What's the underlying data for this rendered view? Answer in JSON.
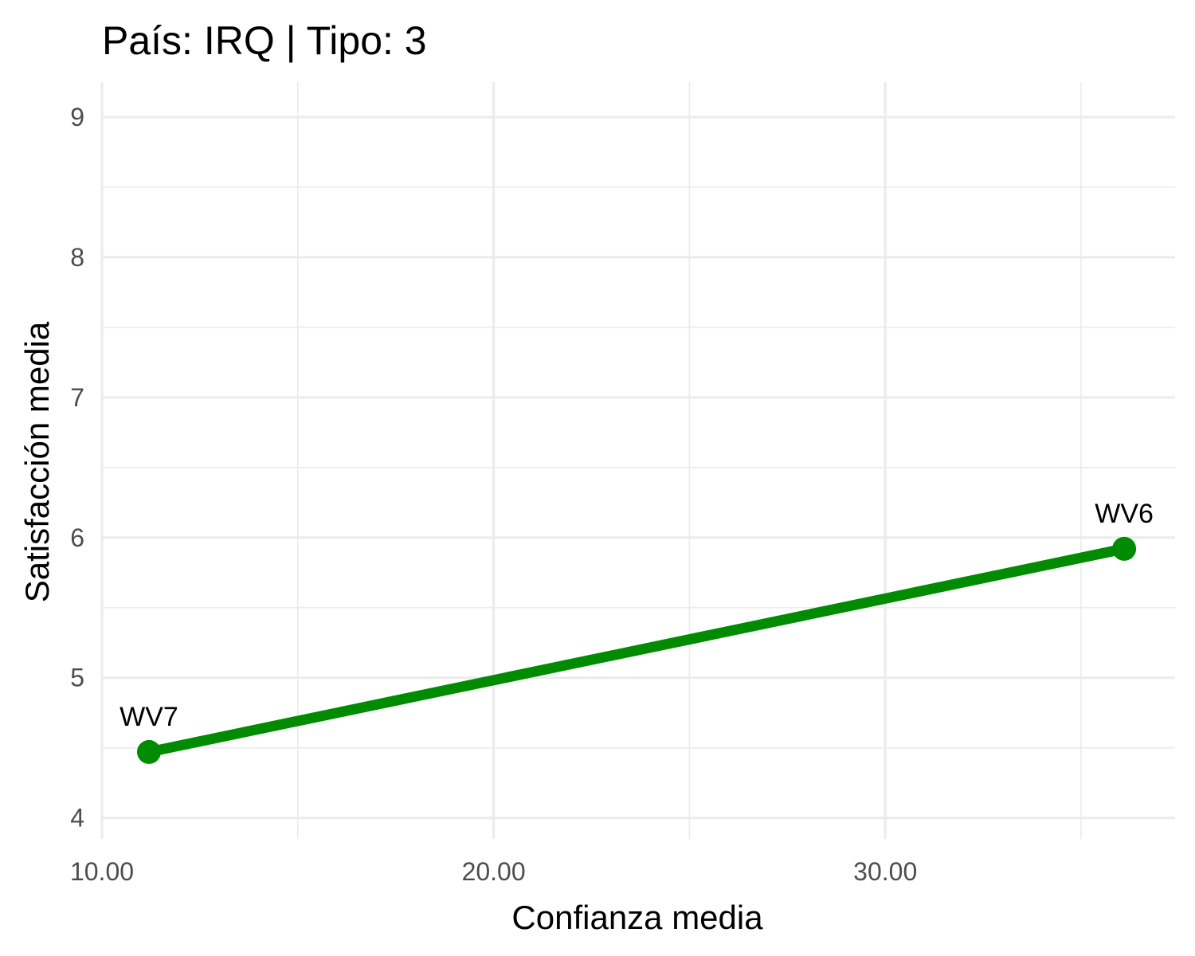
{
  "chart_data": {
    "type": "line",
    "title": "País: IRQ | Tipo: 3",
    "xlabel": "Confianza media",
    "ylabel": "Satisfacción media",
    "xlim": [
      10.0,
      37.4
    ],
    "ylim": [
      3.85,
      9.25
    ],
    "x_ticks": [
      10,
      20,
      30
    ],
    "x_tick_labels": [
      "10.00",
      "20.00",
      "30.00"
    ],
    "x_minor_ticks": [
      15,
      25,
      35
    ],
    "y_ticks": [
      4,
      5,
      6,
      7,
      8,
      9
    ],
    "y_tick_labels": [
      "4",
      "5",
      "6",
      "7",
      "8",
      "9"
    ],
    "y_minor_ticks": [
      4.5,
      5.5,
      6.5,
      7.5,
      8.5
    ],
    "grid": true,
    "legend": "none",
    "series_color": "#008B00",
    "points": [
      {
        "label": "WV7",
        "x": 11.2,
        "y": 4.47
      },
      {
        "label": "WV6",
        "x": 36.1,
        "y": 5.92
      }
    ]
  }
}
